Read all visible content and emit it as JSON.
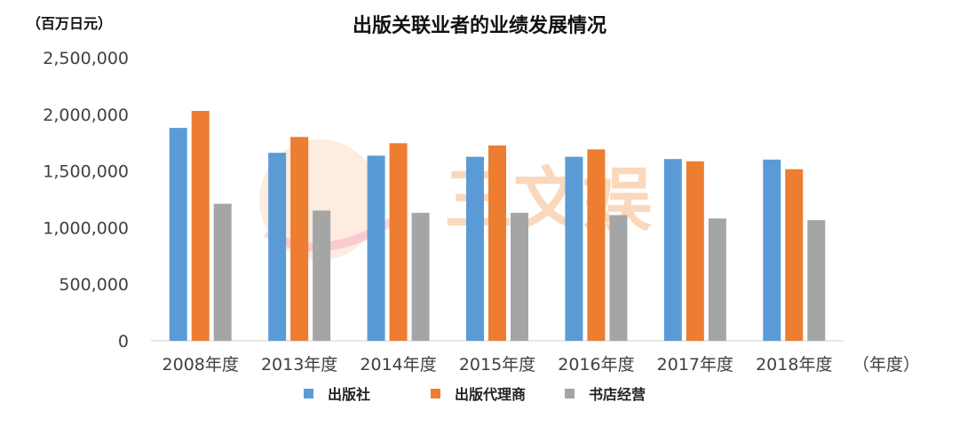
{
  "chart_data": {
    "type": "bar",
    "title": "出版关联业者的业绩发展情况",
    "unit_label": "（百万日元）",
    "x_unit_label": "（年度）",
    "categories": [
      "2008年度",
      "2013年度",
      "2014年度",
      "2015年度",
      "2016年度",
      "2017年度",
      "2018年度"
    ],
    "ylim": [
      0,
      2500000
    ],
    "yticks": [
      "0",
      "500,000",
      "1,000,000",
      "1,500,000",
      "2,000,000",
      "2,500,000"
    ],
    "ytick_values": [
      0,
      500000,
      1000000,
      1500000,
      2000000,
      2500000
    ],
    "grid": false,
    "legend_position": "bottom",
    "series": [
      {
        "name": "出版社",
        "color": "#5b9bd5",
        "values": [
          1880000,
          1660000,
          1635000,
          1625000,
          1625000,
          1605000,
          1600000
        ]
      },
      {
        "name": "出版代理商",
        "color": "#ed7d31",
        "values": [
          2030000,
          1800000,
          1745000,
          1725000,
          1690000,
          1585000,
          1515000
        ]
      },
      {
        "name": "书店经营",
        "color": "#a5a5a5",
        "values": [
          1210000,
          1150000,
          1130000,
          1130000,
          1110000,
          1080000,
          1065000
        ]
      }
    ],
    "watermark": "三文娱"
  }
}
